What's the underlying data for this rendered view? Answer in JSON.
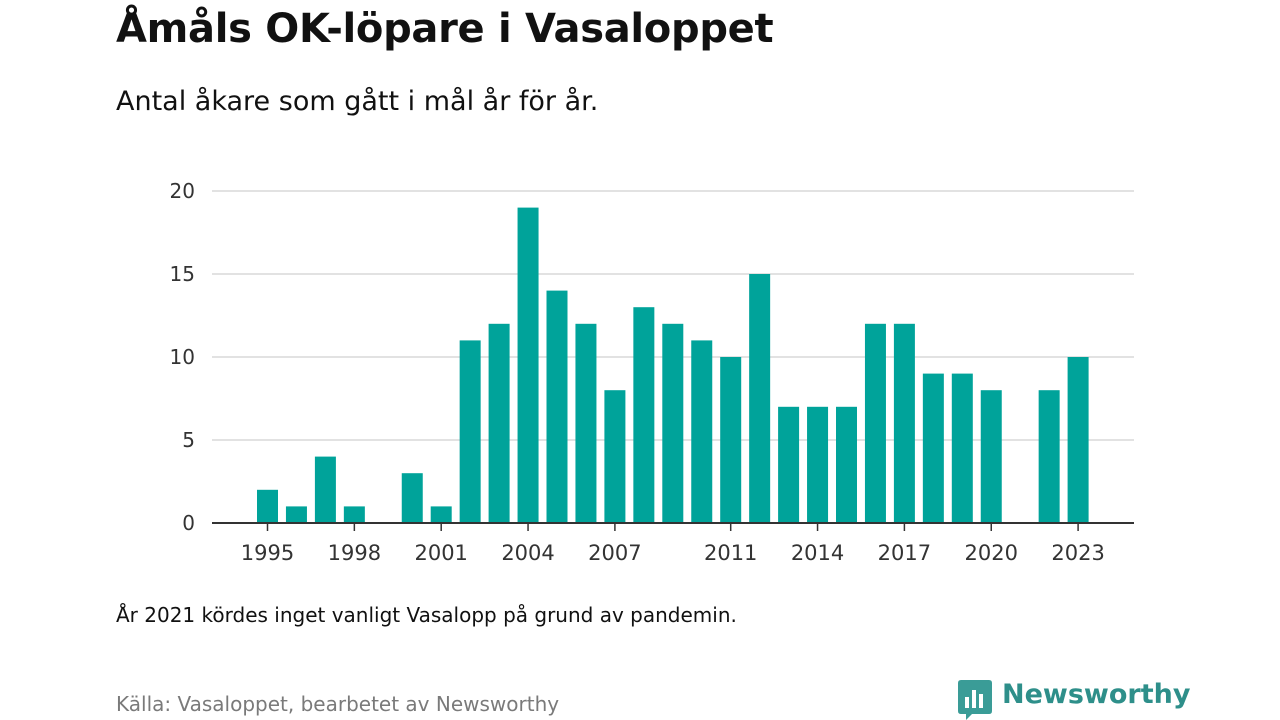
{
  "header": {
    "title": "Åmåls OK-löpare i Vasaloppet",
    "subtitle": "Antal åkare som gått i mål år för år."
  },
  "footer": {
    "note": "År 2021 kördes inget vanligt Vasalopp på grund av pandemin.",
    "source": "Källa: Vasaloppet, bearbetet av Newsworthy",
    "brand": "Newsworthy",
    "brand_icon": "newsworthy-logo-icon"
  },
  "colors": {
    "bar": "#00a39a",
    "grid": "#d9d9d9",
    "axis": "#333333",
    "brand": "#2e8f8a"
  },
  "chart_data": {
    "type": "bar",
    "x": [
      1995,
      1996,
      1997,
      1998,
      1999,
      2000,
      2001,
      2002,
      2003,
      2004,
      2005,
      2006,
      2007,
      2008,
      2009,
      2010,
      2011,
      2012,
      2013,
      2014,
      2015,
      2016,
      2017,
      2018,
      2019,
      2020,
      2021,
      2022,
      2023
    ],
    "values": [
      2,
      1,
      4,
      1,
      0,
      3,
      1,
      11,
      12,
      19,
      14,
      12,
      8,
      13,
      12,
      11,
      10,
      15,
      7,
      7,
      7,
      12,
      12,
      9,
      9,
      8,
      null,
      8,
      10
    ],
    "x_tick_labels": [
      "1995",
      "1998",
      "2001",
      "2004",
      "2007",
      "2011",
      "2014",
      "2017",
      "2020",
      "2023"
    ],
    "y_ticks": [
      0,
      5,
      10,
      15,
      20
    ],
    "ylim": [
      0,
      20
    ],
    "grid": true,
    "legend": "none"
  }
}
